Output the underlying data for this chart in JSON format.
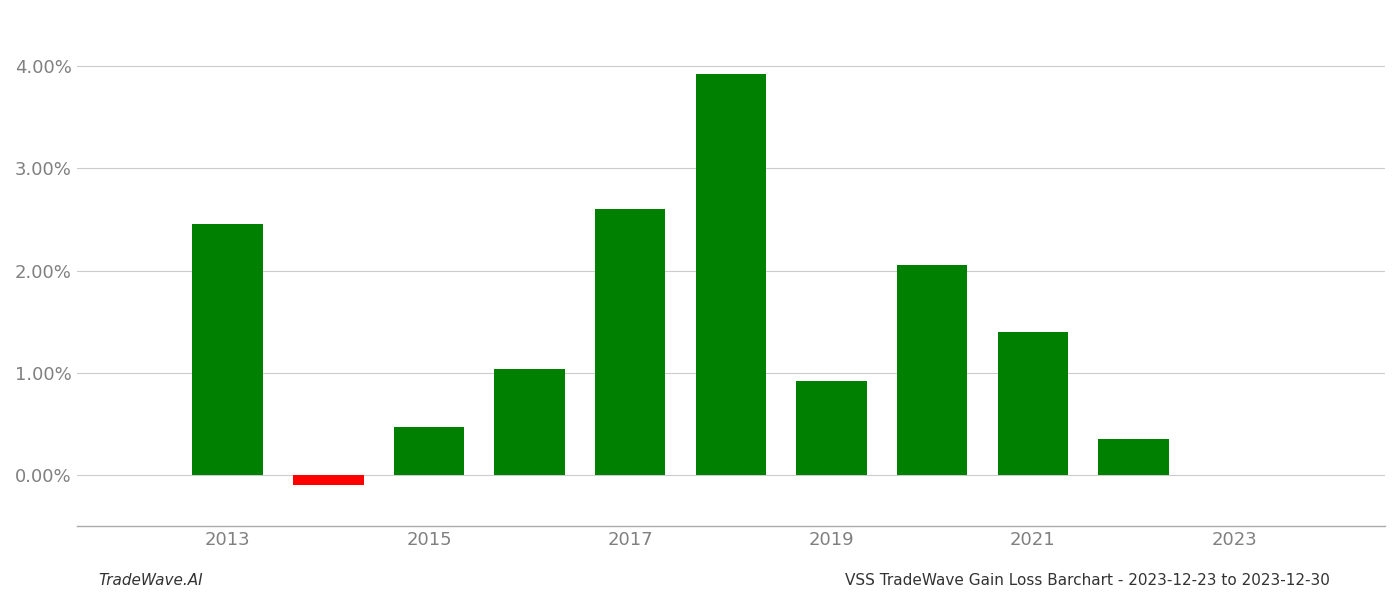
{
  "years": [
    2013,
    2014,
    2015,
    2016,
    2017,
    2018,
    2019,
    2020,
    2021,
    2022
  ],
  "values": [
    0.0246,
    -0.001,
    0.0047,
    0.0104,
    0.026,
    0.0392,
    0.0092,
    0.0205,
    0.014,
    0.0035
  ],
  "bar_colors": [
    "#008000",
    "#ff0000",
    "#008000",
    "#008000",
    "#008000",
    "#008000",
    "#008000",
    "#008000",
    "#008000",
    "#008000"
  ],
  "title": "VSS TradeWave Gain Loss Barchart - 2023-12-23 to 2023-12-30",
  "watermark": "TradeWave.AI",
  "xlim": [
    2011.5,
    2024.5
  ],
  "ylim": [
    -0.005,
    0.045
  ],
  "xticks": [
    2013,
    2015,
    2017,
    2019,
    2021,
    2023
  ],
  "ytick_step": 0.01,
  "background_color": "#ffffff",
  "grid_color": "#cccccc",
  "tick_label_color": "#808080",
  "title_fontsize": 11,
  "watermark_fontsize": 11,
  "bar_width": 0.7
}
